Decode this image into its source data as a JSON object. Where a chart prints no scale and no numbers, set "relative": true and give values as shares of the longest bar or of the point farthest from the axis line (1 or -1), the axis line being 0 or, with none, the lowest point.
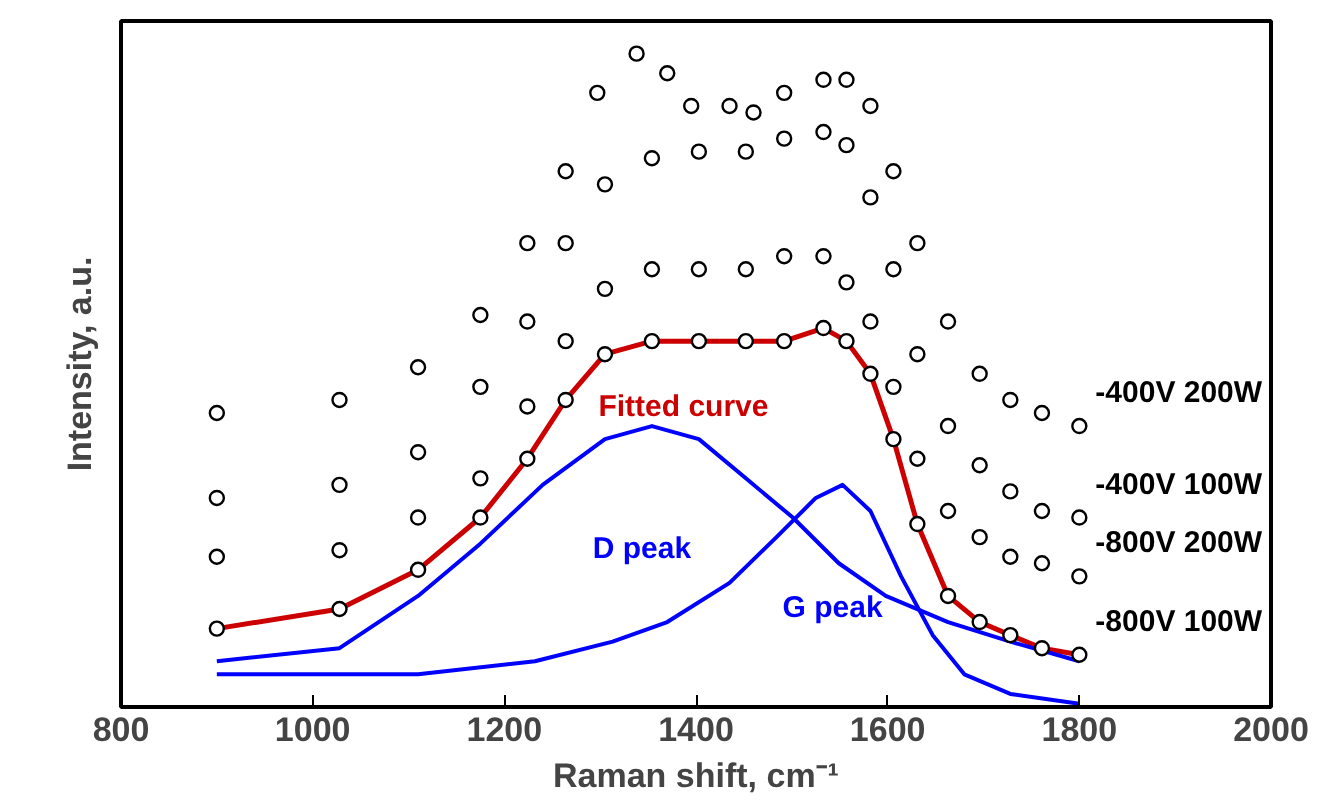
{
  "chart_data": {
    "type": "scatter",
    "relative": true,
    "xlabel": "Raman shift, cm⁻¹",
    "ylabel": "Intensity, a.u.",
    "xlim": [
      800,
      2000
    ],
    "xticks": [
      800,
      1000,
      1200,
      1400,
      1600,
      1800,
      2000
    ],
    "marker": "circle",
    "grid": false,
    "series": [
      {
        "name": "-400V 200W",
        "color": "#000000",
        "x": [
          900,
          1028,
          1110,
          1175,
          1224,
          1264,
          1297,
          1338,
          1370,
          1395,
          1435,
          1460,
          1492,
          1533,
          1557,
          1582,
          1606,
          1631,
          1663,
          1696,
          1728,
          1761,
          1800
        ],
        "values": [
          0.45,
          0.47,
          0.52,
          0.6,
          0.71,
          0.82,
          0.94,
          1.0,
          0.97,
          0.92,
          0.92,
          0.91,
          0.94,
          0.96,
          0.96,
          0.92,
          0.82,
          0.71,
          0.59,
          0.51,
          0.47,
          0.45,
          0.43
        ]
      },
      {
        "name": "-400V 100W",
        "color": "#000000",
        "x": [
          900,
          1028,
          1110,
          1175,
          1224,
          1264,
          1305,
          1354,
          1403,
          1452,
          1492,
          1533,
          1557,
          1582,
          1606,
          1631,
          1663,
          1696,
          1728,
          1761,
          1800
        ],
        "values": [
          0.32,
          0.34,
          0.39,
          0.49,
          0.59,
          0.71,
          0.8,
          0.84,
          0.85,
          0.85,
          0.87,
          0.88,
          0.86,
          0.78,
          0.67,
          0.54,
          0.43,
          0.37,
          0.33,
          0.3,
          0.29
        ]
      },
      {
        "name": "-800V 200W",
        "color": "#000000",
        "x": [
          900,
          1028,
          1110,
          1175,
          1224,
          1264,
          1305,
          1354,
          1403,
          1452,
          1492,
          1533,
          1557,
          1582,
          1606,
          1631,
          1663,
          1696,
          1728,
          1761,
          1800
        ],
        "values": [
          0.23,
          0.24,
          0.29,
          0.35,
          0.46,
          0.56,
          0.64,
          0.67,
          0.67,
          0.67,
          0.69,
          0.69,
          0.65,
          0.59,
          0.49,
          0.38,
          0.3,
          0.26,
          0.23,
          0.22,
          0.2
        ]
      },
      {
        "name": "-800V 100W",
        "color": "#000000",
        "x": [
          900,
          1028,
          1110,
          1175,
          1224,
          1264,
          1305,
          1354,
          1403,
          1452,
          1492,
          1533,
          1557,
          1582,
          1606,
          1631,
          1663,
          1696,
          1728,
          1761,
          1800
        ],
        "values": [
          0.12,
          0.15,
          0.21,
          0.29,
          0.38,
          0.47,
          0.54,
          0.56,
          0.56,
          0.56,
          0.56,
          0.58,
          0.56,
          0.51,
          0.41,
          0.28,
          0.17,
          0.13,
          0.11,
          0.09,
          0.08
        ]
      },
      {
        "name": "Fitted curve",
        "type": "line",
        "marker": "none",
        "color": "#cc0000",
        "x": [
          900,
          1028,
          1110,
          1175,
          1224,
          1264,
          1305,
          1354,
          1403,
          1452,
          1492,
          1533,
          1557,
          1582,
          1606,
          1631,
          1663,
          1696,
          1728,
          1761,
          1800
        ],
        "values": [
          0.12,
          0.15,
          0.21,
          0.29,
          0.38,
          0.47,
          0.54,
          0.56,
          0.56,
          0.56,
          0.56,
          0.58,
          0.56,
          0.51,
          0.41,
          0.28,
          0.17,
          0.13,
          0.11,
          0.09,
          0.08
        ]
      },
      {
        "name": "D peak",
        "type": "line",
        "marker": "none",
        "color": "#0000ff",
        "x": [
          900,
          1028,
          1110,
          1175,
          1240,
          1305,
          1354,
          1403,
          1452,
          1501,
          1549,
          1598,
          1663,
          1728,
          1800
        ],
        "values": [
          0.07,
          0.09,
          0.17,
          0.25,
          0.34,
          0.41,
          0.43,
          0.41,
          0.35,
          0.29,
          0.22,
          0.17,
          0.13,
          0.1,
          0.07
        ]
      },
      {
        "name": "G peak",
        "type": "line",
        "marker": "none",
        "color": "#0000ff",
        "x": [
          900,
          1110,
          1232,
          1313,
          1370,
          1435,
          1484,
          1525,
          1553,
          1582,
          1614,
          1647,
          1680,
          1728,
          1800
        ],
        "values": [
          0.05,
          0.05,
          0.07,
          0.1,
          0.13,
          0.19,
          0.26,
          0.32,
          0.34,
          0.3,
          0.2,
          0.11,
          0.05,
          0.02,
          0.005
        ]
      }
    ]
  }
}
